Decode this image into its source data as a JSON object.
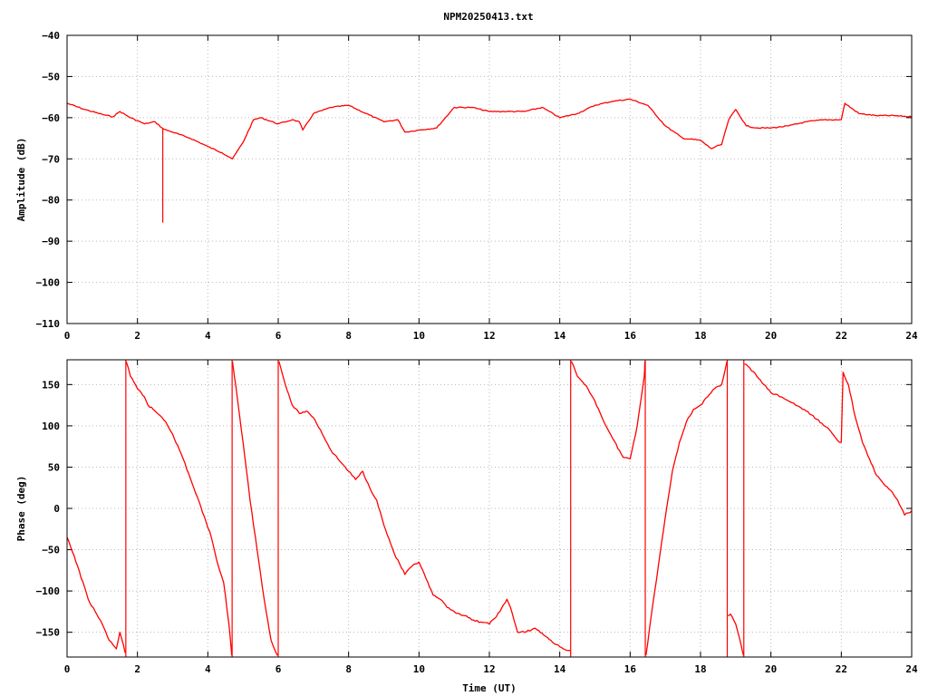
{
  "title": "NPM20250413.txt",
  "colors": {
    "trace": "#ff0000",
    "frame": "#000000",
    "grid": "#b8b8b8"
  },
  "chart_data": [
    {
      "type": "line",
      "ylabel": "Amplitude (dB)",
      "xlabel": "",
      "xlim": [
        0,
        24
      ],
      "ylim": [
        -110,
        -40
      ],
      "xticks": [
        "0",
        "2",
        "4",
        "6",
        "8",
        "10",
        "12",
        "14",
        "16",
        "18",
        "20",
        "22",
        "24"
      ],
      "yticks": [
        "-40",
        "-50",
        "-60",
        "-70",
        "-80",
        "-90",
        "-100",
        "-110"
      ],
      "grid": true,
      "series": [
        {
          "x": [
            0,
            0.5,
            1.0,
            1.3,
            1.5,
            1.8,
            2.2,
            2.5,
            2.7,
            2.75,
            3.0,
            3.5,
            4.0,
            4.4,
            4.7,
            5.0,
            5.3,
            5.5,
            6.0,
            6.4,
            6.6,
            6.7,
            7.0,
            7.5,
            8.0,
            8.5,
            9.0,
            9.4,
            9.6,
            10.0,
            10.5,
            11.0,
            11.5,
            12.0,
            12.5,
            13.0,
            13.5,
            14.0,
            14.5,
            15.0,
            15.5,
            16.0,
            16.5,
            17.0,
            17.5,
            18.0,
            18.3,
            18.6,
            18.8,
            19.0,
            19.3,
            19.6,
            20.0,
            20.5,
            21.0,
            21.5,
            22.0,
            22.1,
            22.5,
            23.0,
            23.5,
            24.0
          ],
          "y": [
            -56.5,
            -58,
            -59.2,
            -59.8,
            -58.5,
            -60,
            -61.5,
            -61,
            -62.5,
            -62.8,
            -63.5,
            -65,
            -67,
            -68.5,
            -70,
            -66,
            -60.5,
            -60,
            -61.5,
            -60.5,
            -61,
            -63,
            -59,
            -57.5,
            -57,
            -59,
            -61,
            -60.5,
            -63.5,
            -63,
            -62.5,
            -57.5,
            -57.5,
            -58.5,
            -58.5,
            -58.5,
            -57.5,
            -60,
            -59,
            -57,
            -56,
            -55.5,
            -57,
            -62,
            -65,
            -65.5,
            -67.5,
            -66.5,
            -60.5,
            -58,
            -62,
            -62.5,
            -62.5,
            -62,
            -61,
            -60.5,
            -60.5,
            -56.5,
            -59,
            -59.5,
            -59.5,
            -59.8
          ]
        }
      ],
      "spikes": [
        {
          "x": 2.72,
          "y": -85.5
        }
      ]
    },
    {
      "type": "line",
      "ylabel": "Phase (deg)",
      "xlabel": "Time (UT)",
      "xlim": [
        0,
        24
      ],
      "ylim": [
        -180,
        180
      ],
      "xticks": [
        "0",
        "2",
        "4",
        "6",
        "8",
        "10",
        "12",
        "14",
        "16",
        "18",
        "20",
        "22",
        "24"
      ],
      "yticks": [
        "150",
        "100",
        "50",
        "0",
        "-50",
        "-100",
        "-150"
      ],
      "grid": true,
      "series": [
        {
          "x": [
            0,
            0.3,
            0.6,
            0.8,
            1.0,
            1.2,
            1.4,
            1.5,
            1.6,
            1.65
          ],
          "y": [
            -35,
            -70,
            -110,
            -125,
            -140,
            -160,
            -170,
            -150,
            -165,
            -175
          ]
        },
        {
          "x": [
            1.68,
            1.8,
            2.0,
            2.2,
            2.3,
            2.5,
            2.7,
            2.8,
            3.0,
            3.3,
            3.6,
            3.9,
            4.1,
            4.3,
            4.45,
            4.6,
            4.68
          ],
          "y": [
            178,
            160,
            145,
            135,
            125,
            118,
            110,
            105,
            90,
            60,
            25,
            -10,
            -35,
            -70,
            -90,
            -140,
            -178
          ]
        },
        {
          "x": [
            4.7,
            4.85,
            5.0,
            5.2,
            5.4,
            5.6,
            5.8,
            5.98
          ],
          "y": [
            178,
            130,
            80,
            10,
            -50,
            -110,
            -160,
            -178
          ]
        },
        {
          "x": [
            6.02,
            6.2,
            6.4,
            6.6,
            6.8,
            7.0,
            7.2,
            7.5,
            7.8,
            8.0,
            8.2,
            8.4,
            8.6,
            8.8,
            9.0,
            9.3,
            9.6,
            9.8,
            10.0,
            10.2,
            10.4,
            10.6,
            10.8,
            11.0,
            11.3,
            11.5,
            11.8,
            12.0,
            12.3,
            12.5,
            12.6,
            12.8,
            13.0,
            13.3,
            13.6,
            13.9,
            14.1,
            14.3
          ],
          "y": [
            178,
            150,
            125,
            115,
            118,
            110,
            95,
            70,
            55,
            45,
            35,
            45,
            25,
            10,
            -20,
            -55,
            -80,
            -70,
            -65,
            -85,
            -105,
            -110,
            -120,
            -125,
            -130,
            -135,
            -138,
            -140,
            -125,
            -110,
            -120,
            -150,
            -150,
            -145,
            -155,
            -165,
            -170,
            -172
          ]
        },
        {
          "x": [
            14.33,
            14.5,
            14.8,
            15.0,
            15.2,
            15.5,
            15.8,
            16.0,
            16.2,
            16.4,
            16.42
          ],
          "y": [
            178,
            160,
            145,
            130,
            110,
            85,
            62,
            60,
            100,
            160,
            178
          ]
        },
        {
          "x": [
            16.45,
            16.6,
            16.8,
            17.0,
            17.2,
            17.4,
            17.6,
            17.8,
            18.0,
            18.2,
            18.4,
            18.6,
            18.75
          ],
          "y": [
            -178,
            -130,
            -70,
            -10,
            45,
            80,
            105,
            120,
            125,
            135,
            145,
            150,
            178
          ]
        },
        {
          "x": [
            18.78,
            18.85,
            19.0,
            19.15,
            19.22
          ],
          "y": [
            -130,
            -128,
            -140,
            -165,
            -178
          ]
        },
        {
          "x": [
            19.25,
            19.4,
            19.6,
            19.8,
            20.0,
            20.3,
            20.6,
            21.0,
            21.3,
            21.6,
            21.9,
            22.0,
            22.05,
            22.2,
            22.4,
            22.6,
            22.8,
            23.0,
            23.2,
            23.4,
            23.6,
            23.8,
            24.0
          ],
          "y": [
            175,
            170,
            160,
            150,
            140,
            135,
            128,
            118,
            108,
            98,
            82,
            80,
            165,
            150,
            110,
            80,
            60,
            40,
            30,
            22,
            10,
            -8,
            -3
          ]
        }
      ],
      "wraps": [
        1.67,
        4.69,
        6.0,
        14.31,
        16.43,
        18.76,
        19.23
      ]
    }
  ]
}
